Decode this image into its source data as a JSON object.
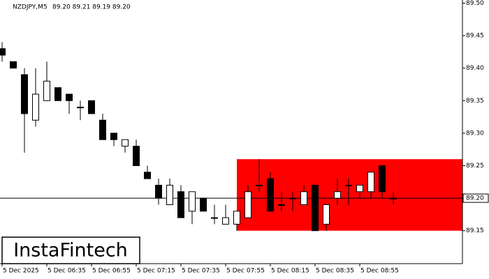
{
  "chart_data": {
    "type": "candlestick",
    "title": "NZDJPY,M5",
    "ohlc_text": "89.20 89.21 89.19 89.20",
    "logo": "InstaFintech",
    "categories": [
      "5 Dec 2025",
      null,
      null,
      null,
      "5 Dec 06:35",
      null,
      null,
      null,
      "5 Dec 06:55",
      null,
      null,
      null,
      "5 Dec 07:15",
      null,
      null,
      null,
      "5 Dec 07:35",
      null,
      null,
      null,
      "5 Dec 07:55",
      null,
      null,
      null,
      "5 Dec 08:15",
      null,
      null,
      null,
      "5 Dec 08:35",
      null,
      null,
      null,
      "5 Dec 08:55",
      null,
      null,
      null
    ],
    "open": [
      89.43,
      89.41,
      89.39,
      89.32,
      89.35,
      89.37,
      89.36,
      89.34,
      89.35,
      89.32,
      89.3,
      89.28,
      89.28,
      89.24,
      89.22,
      89.19,
      89.21,
      89.18,
      89.2,
      89.17,
      89.16,
      89.16,
      89.17,
      89.22,
      89.23,
      89.19,
      89.2,
      89.19,
      89.22,
      89.16,
      89.2,
      89.22,
      89.21,
      89.21,
      89.25,
      89.2
    ],
    "high": [
      89.44,
      89.41,
      89.4,
      89.4,
      89.41,
      89.37,
      89.36,
      89.35,
      89.35,
      89.33,
      89.3,
      89.29,
      89.29,
      89.25,
      89.23,
      89.23,
      89.22,
      89.21,
      89.2,
      89.19,
      89.19,
      89.18,
      89.22,
      89.26,
      89.24,
      89.21,
      89.21,
      89.22,
      89.22,
      89.19,
      89.23,
      89.23,
      89.22,
      89.24,
      89.25,
      89.21
    ],
    "low": [
      89.41,
      89.4,
      89.27,
      89.31,
      89.35,
      89.35,
      89.33,
      89.32,
      89.33,
      89.29,
      89.28,
      89.27,
      89.25,
      89.23,
      89.19,
      89.19,
      89.17,
      89.16,
      89.18,
      89.16,
      89.16,
      89.15,
      89.17,
      89.21,
      89.18,
      89.18,
      89.18,
      89.19,
      89.15,
      89.15,
      89.19,
      89.19,
      89.2,
      89.2,
      89.2,
      89.19
    ],
    "close": [
      89.42,
      89.4,
      89.33,
      89.36,
      89.38,
      89.35,
      89.35,
      89.34,
      89.33,
      89.29,
      89.29,
      89.29,
      89.25,
      89.23,
      89.2,
      89.22,
      89.17,
      89.21,
      89.18,
      89.17,
      89.17,
      89.18,
      89.21,
      89.22,
      89.18,
      89.19,
      89.2,
      89.21,
      89.15,
      89.19,
      89.21,
      89.22,
      89.22,
      89.24,
      89.21,
      89.2
    ],
    "up_color": "#ffffff",
    "down_color": "#000000",
    "ylim": [
      89.0993,
      89.5048
    ],
    "yticks": [
      {
        "value": 89.5,
        "label": "89.50"
      },
      {
        "value": 89.45,
        "label": "89.45"
      },
      {
        "value": 89.4,
        "label": "89.40"
      },
      {
        "value": 89.35,
        "label": "89.35"
      },
      {
        "value": 89.3,
        "label": "89.30"
      },
      {
        "value": 89.25,
        "label": "89.25"
      },
      {
        "value": 89.15,
        "label": "89.15"
      }
    ],
    "price_line": {
      "value": 89.2,
      "label": "89.20"
    },
    "zone": {
      "top": 89.26,
      "bottom": 89.15,
      "color": "#ff0000"
    }
  }
}
